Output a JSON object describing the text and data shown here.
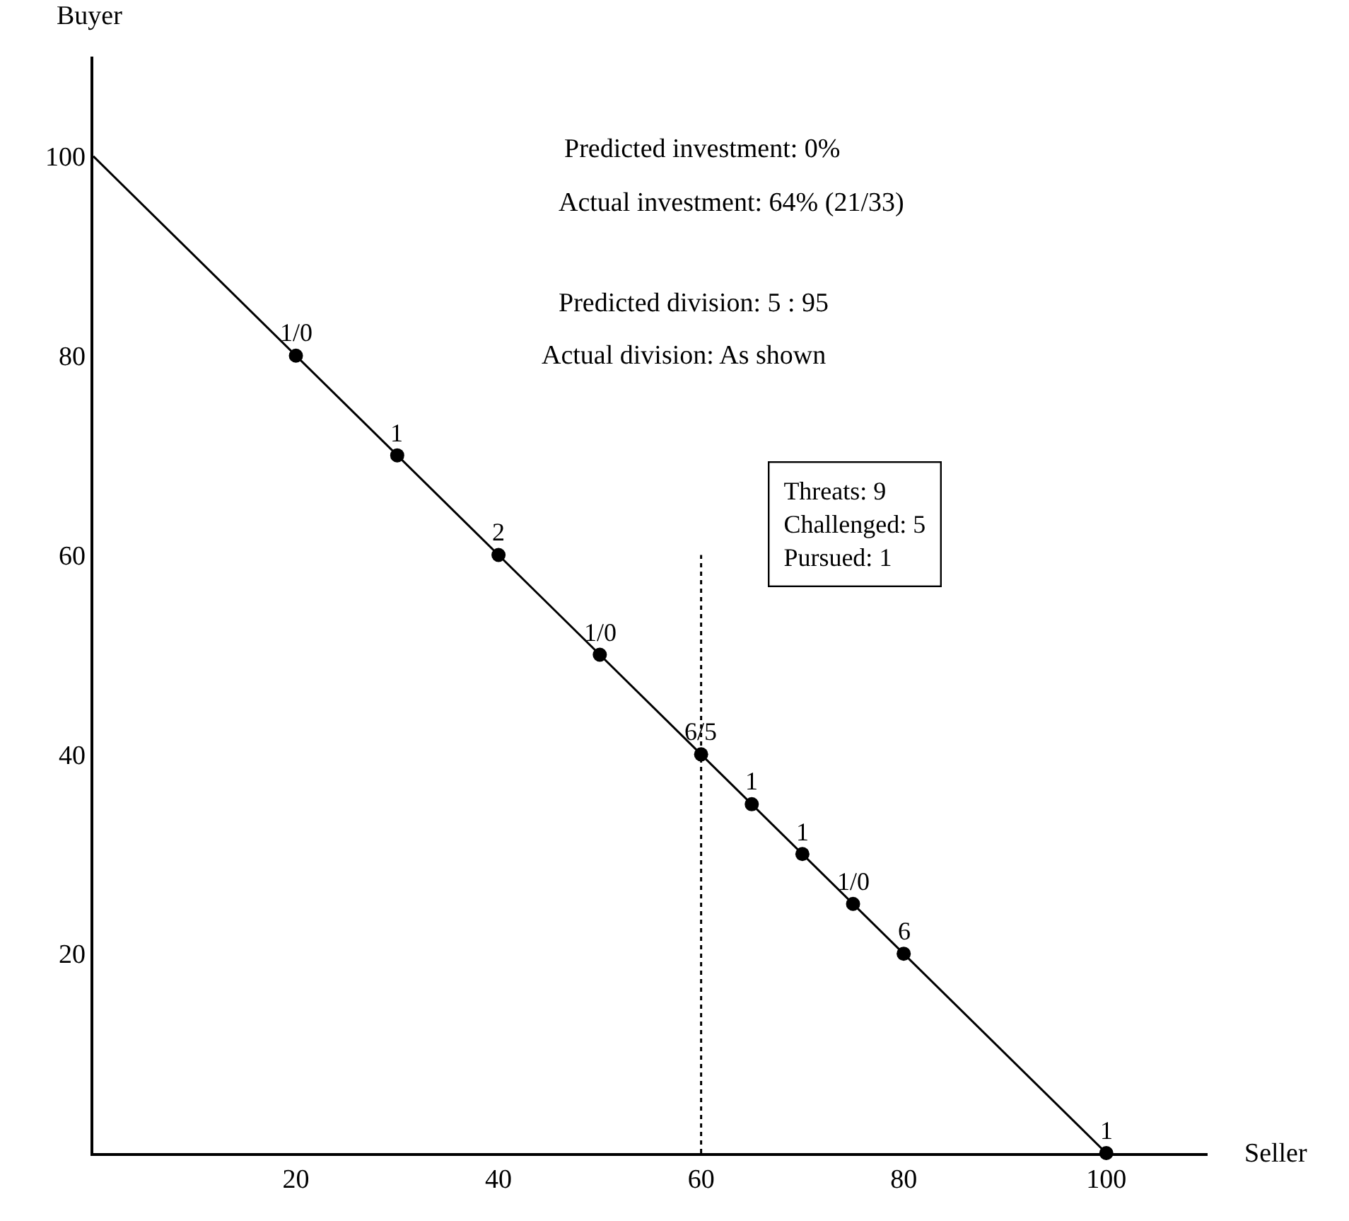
{
  "chart_data": {
    "type": "scatter",
    "xlabel": "Seller",
    "ylabel": "Buyer",
    "xlim": [
      0,
      110
    ],
    "ylim": [
      0,
      110
    ],
    "xticks": [
      20,
      40,
      60,
      80,
      100
    ],
    "yticks": [
      20,
      40,
      60,
      80,
      100
    ],
    "grid": false,
    "legend": false,
    "series": [
      {
        "type": "line",
        "x": [
          0,
          100
        ],
        "values": [
          100,
          0
        ],
        "color": "#000000",
        "marker": "none",
        "line_style": "solid"
      },
      {
        "type": "line",
        "x": [
          60,
          60
        ],
        "values": [
          0,
          60
        ],
        "color": "#000000",
        "marker": "none",
        "line_style": "dotted"
      },
      {
        "x": [
          20,
          30,
          40,
          50,
          60,
          65,
          70,
          75,
          80,
          100
        ],
        "values": [
          80,
          70,
          60,
          50,
          40,
          35,
          30,
          25,
          20,
          0
        ],
        "color": "#000000",
        "marker": "circle"
      }
    ],
    "annotations": [
      "Predicted investment: 0%",
      "Actual investment: 64% (21/33)",
      "Predicted division: 5 : 95",
      "Actual division: As shown",
      "Threats: 9\nChallenged: 5\nPursued: 1",
      {
        "text": "1/0",
        "x": 20,
        "y": 80
      },
      {
        "text": "1",
        "x": 30,
        "y": 70
      },
      {
        "text": "2",
        "x": 40,
        "y": 60
      },
      {
        "text": "1/0",
        "x": 50,
        "y": 50
      },
      {
        "text": "6/5",
        "x": 60,
        "y": 40
      },
      {
        "text": "1",
        "x": 65,
        "y": 35
      },
      {
        "text": "1",
        "x": 70,
        "y": 30
      },
      {
        "text": "1/0",
        "x": 75,
        "y": 25
      },
      {
        "text": "6",
        "x": 80,
        "y": 20
      },
      {
        "text": "1",
        "x": 100,
        "y": 0
      }
    ]
  }
}
